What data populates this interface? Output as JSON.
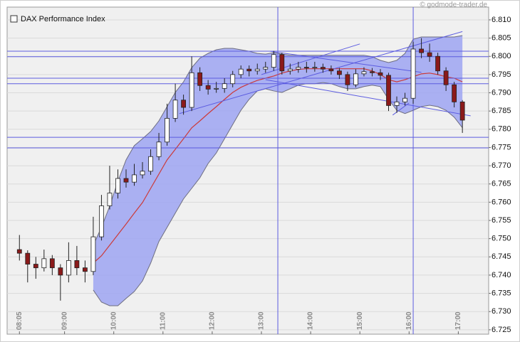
{
  "chart_data": {
    "type": "candlestick",
    "title": "DAX Performance Index",
    "watermark": "© godmode-trader.de",
    "x": [
      "08:05",
      "08:15",
      "08:25",
      "08:35",
      "08:45",
      "08:55",
      "09:05",
      "09:15",
      "09:25",
      "09:35",
      "09:45",
      "09:55",
      "10:05",
      "10:15",
      "10:25",
      "10:35",
      "10:45",
      "10:55",
      "11:05",
      "11:15",
      "11:25",
      "11:35",
      "11:45",
      "11:55",
      "12:05",
      "12:15",
      "12:25",
      "12:35",
      "12:45",
      "12:55",
      "13:05",
      "13:15",
      "13:25",
      "13:35",
      "13:45",
      "13:55",
      "14:05",
      "14:15",
      "14:25",
      "14:35",
      "14:45",
      "14:55",
      "15:05",
      "15:15",
      "15:25",
      "15:35",
      "15:45",
      "15:55",
      "16:05",
      "16:15",
      "16:25",
      "16:35",
      "16:45",
      "16:55",
      "17:05"
    ],
    "open": [
      6.747,
      6.746,
      6.743,
      6.742,
      6.7445,
      6.742,
      6.74,
      6.744,
      6.742,
      6.741,
      6.7505,
      6.759,
      6.7625,
      6.7665,
      6.7655,
      6.7675,
      6.7685,
      6.7725,
      6.7765,
      6.783,
      6.788,
      6.786,
      6.7955,
      6.792,
      6.791,
      6.7912,
      6.7925,
      6.795,
      6.7965,
      6.796,
      6.7965,
      6.797,
      6.8005,
      6.796,
      6.7965,
      6.797,
      6.7968,
      6.797,
      6.7965,
      6.796,
      6.795,
      6.7922,
      6.7952,
      6.7958,
      6.7955,
      6.7948,
      6.7865,
      6.7875,
      6.7885,
      6.802,
      6.801,
      6.8,
      6.796,
      6.7922,
      6.7875
    ],
    "high": [
      6.751,
      6.7468,
      6.745,
      6.747,
      6.7455,
      6.743,
      6.749,
      6.748,
      6.744,
      6.756,
      6.762,
      6.77,
      6.769,
      6.769,
      6.7705,
      6.771,
      6.7745,
      6.779,
      6.787,
      6.7925,
      6.7895,
      6.8,
      6.797,
      6.7935,
      6.793,
      6.794,
      6.796,
      6.7975,
      6.7975,
      6.798,
      6.7985,
      6.8015,
      6.801,
      6.798,
      6.7985,
      6.7985,
      6.7985,
      6.798,
      6.7975,
      6.7968,
      6.7958,
      6.7965,
      6.797,
      6.7968,
      6.7965,
      6.7955,
      6.789,
      6.79,
      6.804,
      6.805,
      6.8035,
      6.801,
      6.797,
      6.793,
      6.788
    ],
    "low": [
      6.744,
      6.738,
      6.739,
      6.741,
      6.74,
      6.733,
      6.738,
      6.74,
      6.738,
      6.74,
      6.7495,
      6.758,
      6.761,
      6.764,
      6.7645,
      6.7665,
      6.7675,
      6.7715,
      6.7755,
      6.782,
      6.784,
      6.785,
      6.7905,
      6.7895,
      6.79,
      6.79,
      6.7915,
      6.794,
      6.7945,
      6.795,
      6.7955,
      6.796,
      6.795,
      6.795,
      6.7955,
      6.7955,
      6.7958,
      6.7955,
      6.795,
      6.7938,
      6.7905,
      6.7915,
      6.7945,
      6.7945,
      6.7935,
      6.785,
      6.7845,
      6.7865,
      6.787,
      6.7995,
      6.7985,
      6.795,
      6.7905,
      6.786,
      6.779
    ],
    "close": [
      6.746,
      6.743,
      6.742,
      6.7445,
      6.742,
      6.74,
      6.744,
      6.742,
      6.741,
      6.7505,
      6.759,
      6.7625,
      6.7665,
      6.7655,
      6.7675,
      6.7685,
      6.7725,
      6.7765,
      6.783,
      6.788,
      6.786,
      6.7955,
      6.792,
      6.791,
      6.7912,
      6.7925,
      6.795,
      6.7965,
      6.796,
      6.7965,
      6.797,
      6.8005,
      6.796,
      6.7965,
      6.797,
      6.7968,
      6.797,
      6.7965,
      6.796,
      6.795,
      6.7922,
      6.7952,
      6.7958,
      6.7955,
      6.7948,
      6.7865,
      6.7875,
      6.7885,
      6.802,
      6.801,
      6.8,
      6.796,
      6.7922,
      6.7875,
      6.7825
    ],
    "up_color": "#ffffff",
    "down_color": "#8b1a1a",
    "bands": {
      "color": "#9ea4f2",
      "upper": [
        null,
        null,
        null,
        null,
        null,
        null,
        null,
        null,
        null,
        6.7482,
        6.7531,
        6.7589,
        6.7657,
        6.7716,
        6.7755,
        6.7774,
        6.7794,
        6.7823,
        6.7862,
        6.7901,
        6.793,
        6.7969,
        6.7995,
        6.8008,
        6.8018,
        6.8022,
        6.8022,
        6.8018,
        6.8014,
        6.8008,
        6.8006,
        6.801,
        6.8006,
        6.8003,
        6.8003,
        6.8003,
        6.8003,
        6.8003,
        6.8003,
        6.8003,
        6.8003,
        6.8003,
        6.8003,
        6.7999,
        6.7989,
        6.7983,
        6.7989,
        6.8008,
        6.8047,
        6.8053,
        6.8053,
        6.8053,
        6.8053,
        6.8053,
        6.8057
      ],
      "lower": [
        null,
        null,
        null,
        null,
        null,
        null,
        null,
        null,
        null,
        6.7359,
        6.7326,
        6.7316,
        6.7316,
        6.7336,
        6.7355,
        6.7384,
        6.7433,
        6.7492,
        6.7531,
        6.757,
        6.7609,
        6.7638,
        6.7667,
        6.7706,
        6.7735,
        6.7774,
        6.7813,
        6.7852,
        6.7882,
        6.7905,
        6.7911,
        6.7905,
        6.7901,
        6.7911,
        6.7921,
        6.7925,
        6.7925,
        6.7928,
        6.7925,
        6.7917,
        6.7911,
        6.7911,
        6.7917,
        6.7921,
        6.7917,
        6.7882,
        6.7852,
        6.7843,
        6.7852,
        6.7862,
        6.7866,
        6.7862,
        6.7852,
        6.7833,
        6.7804
      ]
    },
    "ma": {
      "color": "#cc3a3a",
      "values": [
        null,
        null,
        null,
        null,
        null,
        null,
        null,
        null,
        null,
        6.7433,
        6.7453,
        6.7482,
        6.7511,
        6.754,
        6.757,
        6.7599,
        6.7638,
        6.7677,
        6.7716,
        6.7745,
        6.7774,
        6.7804,
        6.7823,
        6.7843,
        6.7862,
        6.7882,
        6.7901,
        6.7915,
        6.7925,
        6.7934,
        6.794,
        6.7946,
        6.7954,
        6.796,
        6.7964,
        6.7966,
        6.7966,
        6.7966,
        6.7966,
        6.7966,
        6.7966,
        6.7966,
        6.7966,
        6.796,
        6.795,
        6.7936,
        6.793,
        6.7936,
        6.7944,
        6.7952,
        6.7954,
        6.795,
        6.7944,
        6.794,
        6.793
      ]
    },
    "line_color": "#5c5ce0",
    "hlines": [
      6.8014,
      6.7999,
      6.794,
      6.7925,
      6.7778,
      6.7749
    ],
    "vlines": [
      "13:20",
      "16:05"
    ],
    "trendlines": [
      {
        "x": [
          "11:20",
          "17:05"
        ],
        "y": [
          6.7843,
          6.8068
        ]
      },
      {
        "x": [
          "13:00",
          "15:00"
        ],
        "y": [
          6.795,
          6.8034
        ]
      },
      {
        "x": [
          "13:10",
          "16:15"
        ],
        "y": [
          6.8014,
          6.7956
        ]
      },
      {
        "x": [
          "13:05",
          "17:15"
        ],
        "y": [
          6.7936,
          6.7837
        ]
      },
      {
        "x": [
          "15:40",
          "16:00"
        ],
        "y": [
          6.7839,
          6.7872
        ]
      }
    ],
    "xlim": [
      "07:50",
      "17:37"
    ],
    "ylim": [
      6.7238,
      6.8135
    ],
    "xticks": [
      "08:05",
      "09:00",
      "10:00",
      "11:00",
      "12:00",
      "13:00",
      "14:00",
      "15:00",
      "16:00",
      "17:00"
    ],
    "yticks": [
      6.725,
      {
        "value": 6.73,
        "label": "6.730"
      },
      6.735,
      {
        "value": 6.74,
        "label": "6.740"
      },
      6.745,
      {
        "value": 6.75,
        "label": "6.750"
      },
      6.755,
      {
        "value": 6.76,
        "label": "6.760"
      },
      6.765,
      {
        "value": 6.77,
        "label": "6.770"
      },
      6.775,
      {
        "value": 6.78,
        "label": "6.780"
      },
      6.785,
      {
        "value": 6.79,
        "label": "6.790"
      },
      6.795,
      {
        "value": 6.8,
        "label": "6.800"
      },
      6.805,
      {
        "value": 6.81,
        "label": "6.810"
      }
    ],
    "grid": true
  }
}
